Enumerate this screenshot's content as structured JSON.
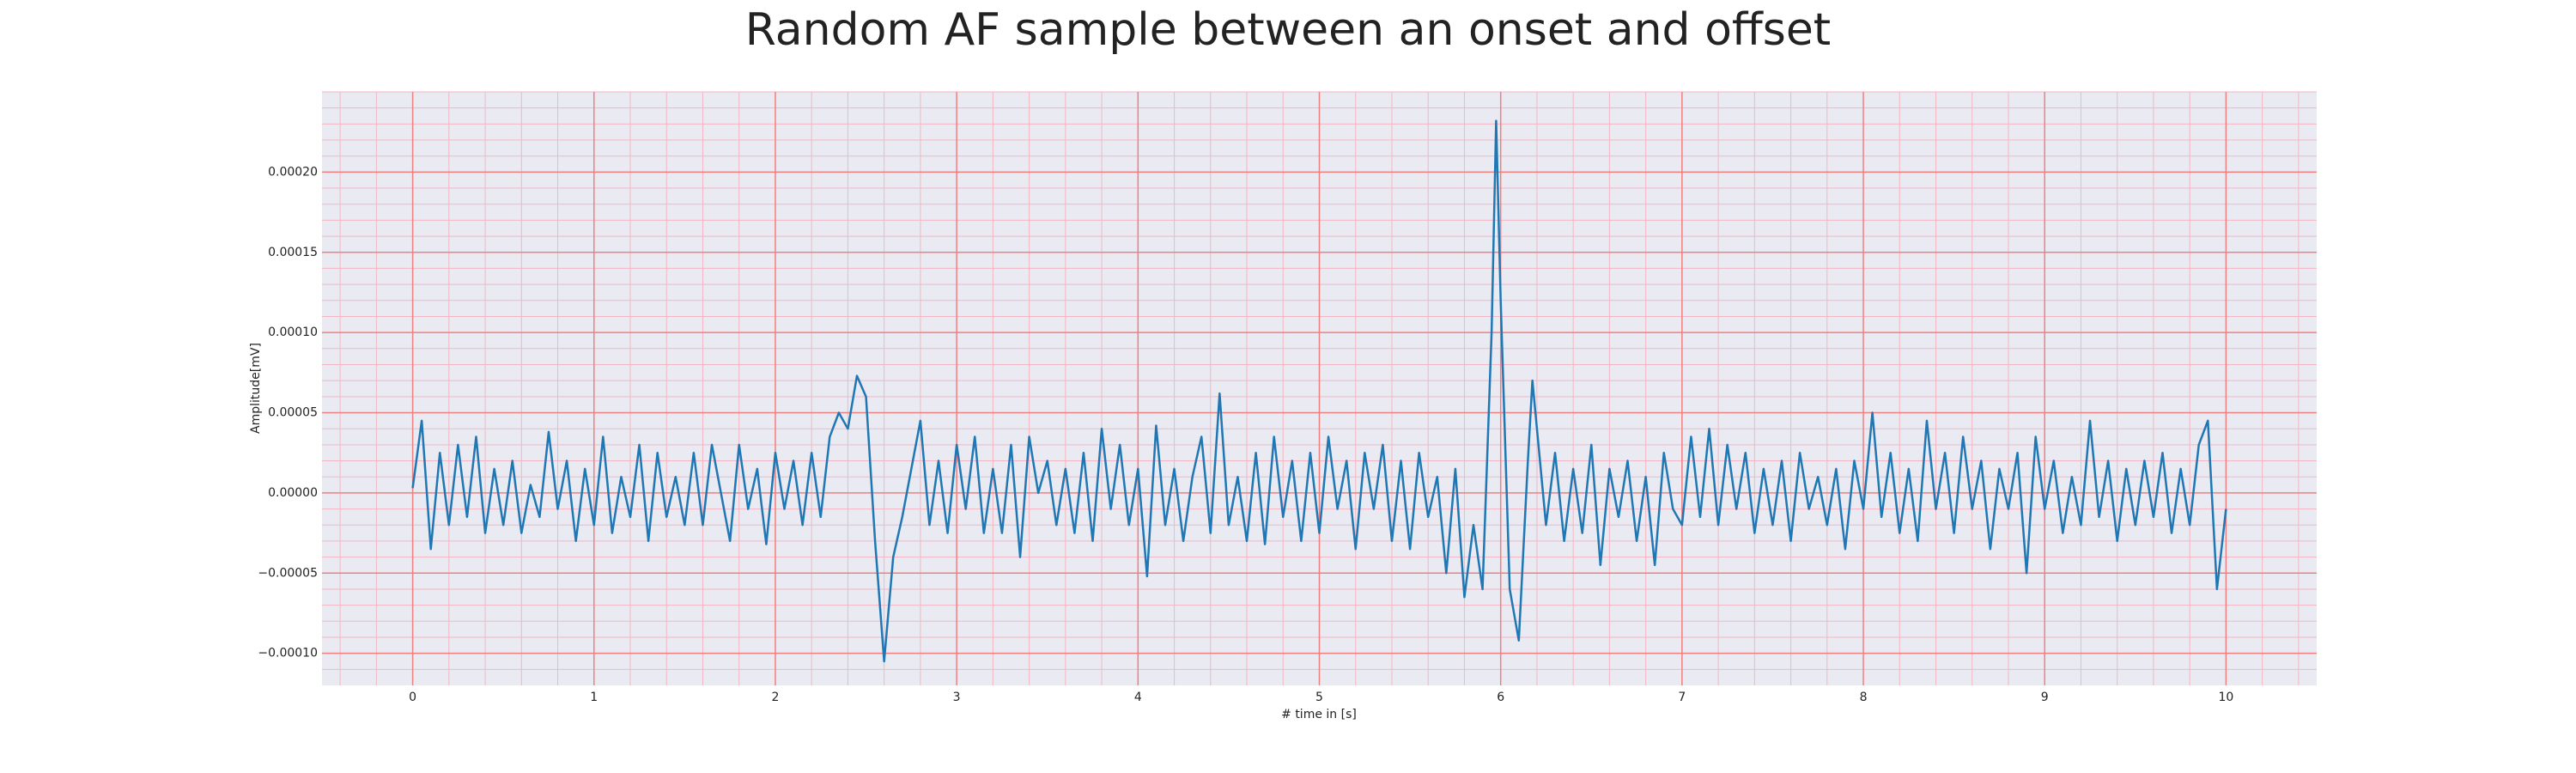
{
  "chart_data": {
    "type": "line",
    "title": "Random AF sample between an onset and offset",
    "xlabel": "# time in [s]",
    "ylabel": "Amplitude[mV]",
    "color": "#1f77b4",
    "grid": true,
    "minor_grid": true,
    "xlim": [
      -0.5,
      10.5
    ],
    "ylim": [
      -0.00012,
      0.00025
    ],
    "xticks": [
      0,
      1,
      2,
      3,
      4,
      5,
      6,
      7,
      8,
      9,
      10
    ],
    "yticks": [
      {
        "value": -0.0001,
        "label": "−0.00010"
      },
      {
        "value": -5e-05,
        "label": "−0.00005"
      },
      {
        "value": 0,
        "label": "0.00000"
      },
      {
        "value": 5e-05,
        "label": "0.00005"
      },
      {
        "value": 0.0001,
        "label": "0.00010"
      },
      {
        "value": 0.00015,
        "label": "0.00015"
      },
      {
        "value": 0.0002,
        "label": "0.00020"
      }
    ],
    "x": [
      0,
      0.05,
      0.1,
      0.15,
      0.2,
      0.25,
      0.3,
      0.35,
      0.4,
      0.45,
      0.5,
      0.55,
      0.6,
      0.65,
      0.7,
      0.75,
      0.8,
      0.85,
      0.9,
      0.95,
      1.0,
      1.05,
      1.1,
      1.15,
      1.2,
      1.25,
      1.3,
      1.35,
      1.4,
      1.45,
      1.5,
      1.55,
      1.6,
      1.65,
      1.7,
      1.75,
      1.8,
      1.85,
      1.9,
      1.95,
      2.0,
      2.05,
      2.1,
      2.15,
      2.2,
      2.25,
      2.3,
      2.35,
      2.4,
      2.45,
      2.5,
      2.55,
      2.6,
      2.65,
      2.7,
      2.75,
      2.8,
      2.85,
      2.9,
      2.95,
      3.0,
      3.05,
      3.1,
      3.15,
      3.2,
      3.25,
      3.3,
      3.35,
      3.4,
      3.45,
      3.5,
      3.55,
      3.6,
      3.65,
      3.7,
      3.75,
      3.8,
      3.85,
      3.9,
      3.95,
      4.0,
      4.05,
      4.1,
      4.15,
      4.2,
      4.25,
      4.3,
      4.35,
      4.4,
      4.45,
      4.5,
      4.55,
      4.6,
      4.65,
      4.7,
      4.75,
      4.8,
      4.85,
      4.9,
      4.95,
      5.0,
      5.05,
      5.1,
      5.15,
      5.2,
      5.25,
      5.3,
      5.35,
      5.4,
      5.45,
      5.5,
      5.55,
      5.6,
      5.65,
      5.7,
      5.75,
      5.8,
      5.85,
      5.9,
      5.95,
      5.975,
      6.0,
      6.05,
      6.1,
      6.15,
      6.175,
      6.2,
      6.25,
      6.3,
      6.35,
      6.4,
      6.45,
      6.5,
      6.55,
      6.6,
      6.65,
      6.7,
      6.75,
      6.8,
      6.85,
      6.9,
      6.95,
      7.0,
      7.05,
      7.1,
      7.15,
      7.2,
      7.25,
      7.3,
      7.35,
      7.4,
      7.45,
      7.5,
      7.55,
      7.6,
      7.65,
      7.7,
      7.75,
      7.8,
      7.85,
      7.9,
      7.95,
      8.0,
      8.05,
      8.1,
      8.15,
      8.2,
      8.25,
      8.3,
      8.35,
      8.4,
      8.45,
      8.5,
      8.55,
      8.6,
      8.65,
      8.7,
      8.75,
      8.8,
      8.85,
      8.9,
      8.95,
      9.0,
      9.05,
      9.1,
      9.15,
      9.2,
      9.25,
      9.3,
      9.35,
      9.4,
      9.45,
      9.5,
      9.55,
      9.6,
      9.65,
      9.7,
      9.75,
      9.8,
      9.85,
      9.9,
      9.95,
      10.0
    ],
    "values": [
      3e-06,
      4.5e-05,
      -3.5e-05,
      2.5e-05,
      -2e-05,
      3e-05,
      -1.5e-05,
      3.5e-05,
      -2.5e-05,
      1.5e-05,
      -2e-05,
      2e-05,
      -2.5e-05,
      5e-06,
      -1.5e-05,
      3.8e-05,
      -1e-05,
      2e-05,
      -3e-05,
      1.5e-05,
      -2e-05,
      3.5e-05,
      -2.5e-05,
      1e-05,
      -1.5e-05,
      3e-05,
      -3e-05,
      2.5e-05,
      -1.5e-05,
      1e-05,
      -2e-05,
      2.5e-05,
      -2e-05,
      3e-05,
      0,
      -3e-05,
      3e-05,
      -1e-05,
      1.5e-05,
      -3.2e-05,
      2.5e-05,
      -1e-05,
      2e-05,
      -2e-05,
      2.5e-05,
      -1.5e-05,
      3.5e-05,
      5e-05,
      4e-05,
      7.3e-05,
      6e-05,
      -3e-05,
      -0.000105,
      -4e-05,
      -1.5e-05,
      1.5e-05,
      4.5e-05,
      -2e-05,
      2e-05,
      -2.5e-05,
      3e-05,
      -1e-05,
      3.5e-05,
      -2.5e-05,
      1.5e-05,
      -2.5e-05,
      3e-05,
      -4e-05,
      3.5e-05,
      0,
      2e-05,
      -2e-05,
      1.5e-05,
      -2.5e-05,
      2.5e-05,
      -3e-05,
      4e-05,
      -1e-05,
      3e-05,
      -2e-05,
      1.5e-05,
      -5.2e-05,
      4.2e-05,
      -2e-05,
      1.5e-05,
      -3e-05,
      1e-05,
      3.5e-05,
      -2.5e-05,
      6.2e-05,
      -2e-05,
      1e-05,
      -3e-05,
      2.5e-05,
      -3.2e-05,
      3.5e-05,
      -1.5e-05,
      2e-05,
      -3e-05,
      2.5e-05,
      -2.5e-05,
      3.5e-05,
      -1e-05,
      2e-05,
      -3.5e-05,
      2.5e-05,
      -1e-05,
      3e-05,
      -3e-05,
      2e-05,
      -3.5e-05,
      2.5e-05,
      -1.5e-05,
      1e-05,
      -5e-05,
      1.5e-05,
      -6.5e-05,
      -2e-05,
      -6e-05,
      0.0001,
      0.000232,
      0.00012,
      -6e-05,
      -9.2e-05,
      2e-05,
      7e-05,
      4e-05,
      -2e-05,
      2.5e-05,
      -3e-05,
      1.5e-05,
      -2.5e-05,
      3e-05,
      -4.5e-05,
      1.5e-05,
      -1.5e-05,
      2e-05,
      -3e-05,
      1e-05,
      -4.5e-05,
      2.5e-05,
      -1e-05,
      -2e-05,
      3.5e-05,
      -1.5e-05,
      4e-05,
      -2e-05,
      3e-05,
      -1e-05,
      2.5e-05,
      -2.5e-05,
      1.5e-05,
      -2e-05,
      2e-05,
      -3e-05,
      2.5e-05,
      -1e-05,
      1e-05,
      -2e-05,
      1.5e-05,
      -3.5e-05,
      2e-05,
      -1e-05,
      5e-05,
      -1.5e-05,
      2.5e-05,
      -2.5e-05,
      1.5e-05,
      -3e-05,
      4.5e-05,
      -1e-05,
      2.5e-05,
      -2.5e-05,
      3.5e-05,
      -1e-05,
      2e-05,
      -3.5e-05,
      1.5e-05,
      -1e-05,
      2.5e-05,
      -5e-05,
      3.5e-05,
      -1e-05,
      2e-05,
      -2.5e-05,
      1e-05,
      -2e-05,
      4.5e-05,
      -1.5e-05,
      2e-05,
      -3e-05,
      1.5e-05,
      -2e-05,
      2e-05,
      -1.5e-05,
      2.5e-05,
      -2.5e-05,
      1.5e-05,
      -2e-05,
      3e-05,
      4.5e-05,
      -6e-05,
      -1e-05
    ]
  }
}
